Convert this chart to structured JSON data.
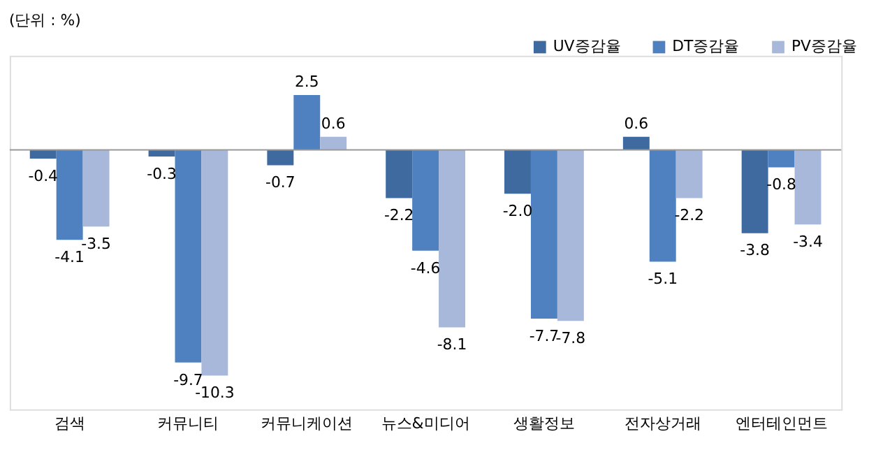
{
  "chart_data": {
    "type": "bar",
    "categories": [
      "검색",
      "커뮤니티",
      "커뮤니케이션",
      "뉴스&미디어",
      "생활정보",
      "전자상거래",
      "엔터테인먼트"
    ],
    "series": [
      {
        "name": "UV증감율",
        "color": "#3e6aa0",
        "values": [
          -0.4,
          -0.3,
          -0.7,
          -2.2,
          -2.0,
          0.6,
          -3.8
        ],
        "value_labels": [
          "-0.4",
          "-0.3",
          "-0.7",
          "-2.2",
          "-2.0",
          "0.6",
          "-3.8"
        ]
      },
      {
        "name": "DT증감율",
        "color": "#4f81c0",
        "values": [
          -4.1,
          -9.7,
          2.5,
          -4.6,
          -7.7,
          -5.1,
          -0.8
        ],
        "value_labels": [
          "-4.1",
          "-9.7",
          "2.5",
          "-4.6",
          "-7.7",
          "-5.1",
          "-0.8"
        ]
      },
      {
        "name": "PV증감율",
        "color": "#a8b8da",
        "values": [
          -3.5,
          -10.3,
          0.6,
          -8.1,
          -7.8,
          -2.2,
          -3.4
        ],
        "value_labels": [
          "-3.5",
          "-10.3",
          "0.6",
          "-8.1",
          "-7.8",
          "-2.2",
          "-3.4"
        ]
      }
    ],
    "legend": "top right",
    "annotations": [
      "(단위 : %)"
    ]
  }
}
